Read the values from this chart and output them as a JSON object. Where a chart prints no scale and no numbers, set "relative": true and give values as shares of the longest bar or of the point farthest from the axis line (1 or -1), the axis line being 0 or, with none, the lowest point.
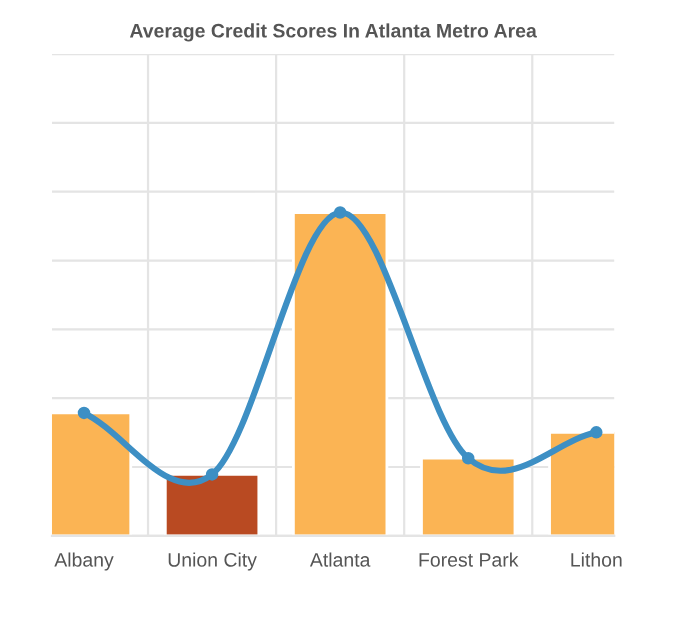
{
  "chart_data": {
    "type": "bar",
    "title": "Average Credit Scores In Atlanta Metro Area",
    "categories": [
      "Albany",
      "Union City",
      "Atlanta",
      "Forest Park",
      "Lithon"
    ],
    "relative": true,
    "grid": true,
    "series": [
      {
        "values": [
          0.38,
          0.19,
          1.0,
          0.24,
          0.32
        ],
        "colors": [
          "#fbb454",
          "#b94a22",
          "#fbb454",
          "#fbb454",
          "#fbb454"
        ]
      },
      {
        "type": "line",
        "color": "#3d8fc4",
        "marker": "circle",
        "values": [
          0.38,
          0.19,
          1.0,
          0.24,
          0.32
        ]
      }
    ]
  }
}
